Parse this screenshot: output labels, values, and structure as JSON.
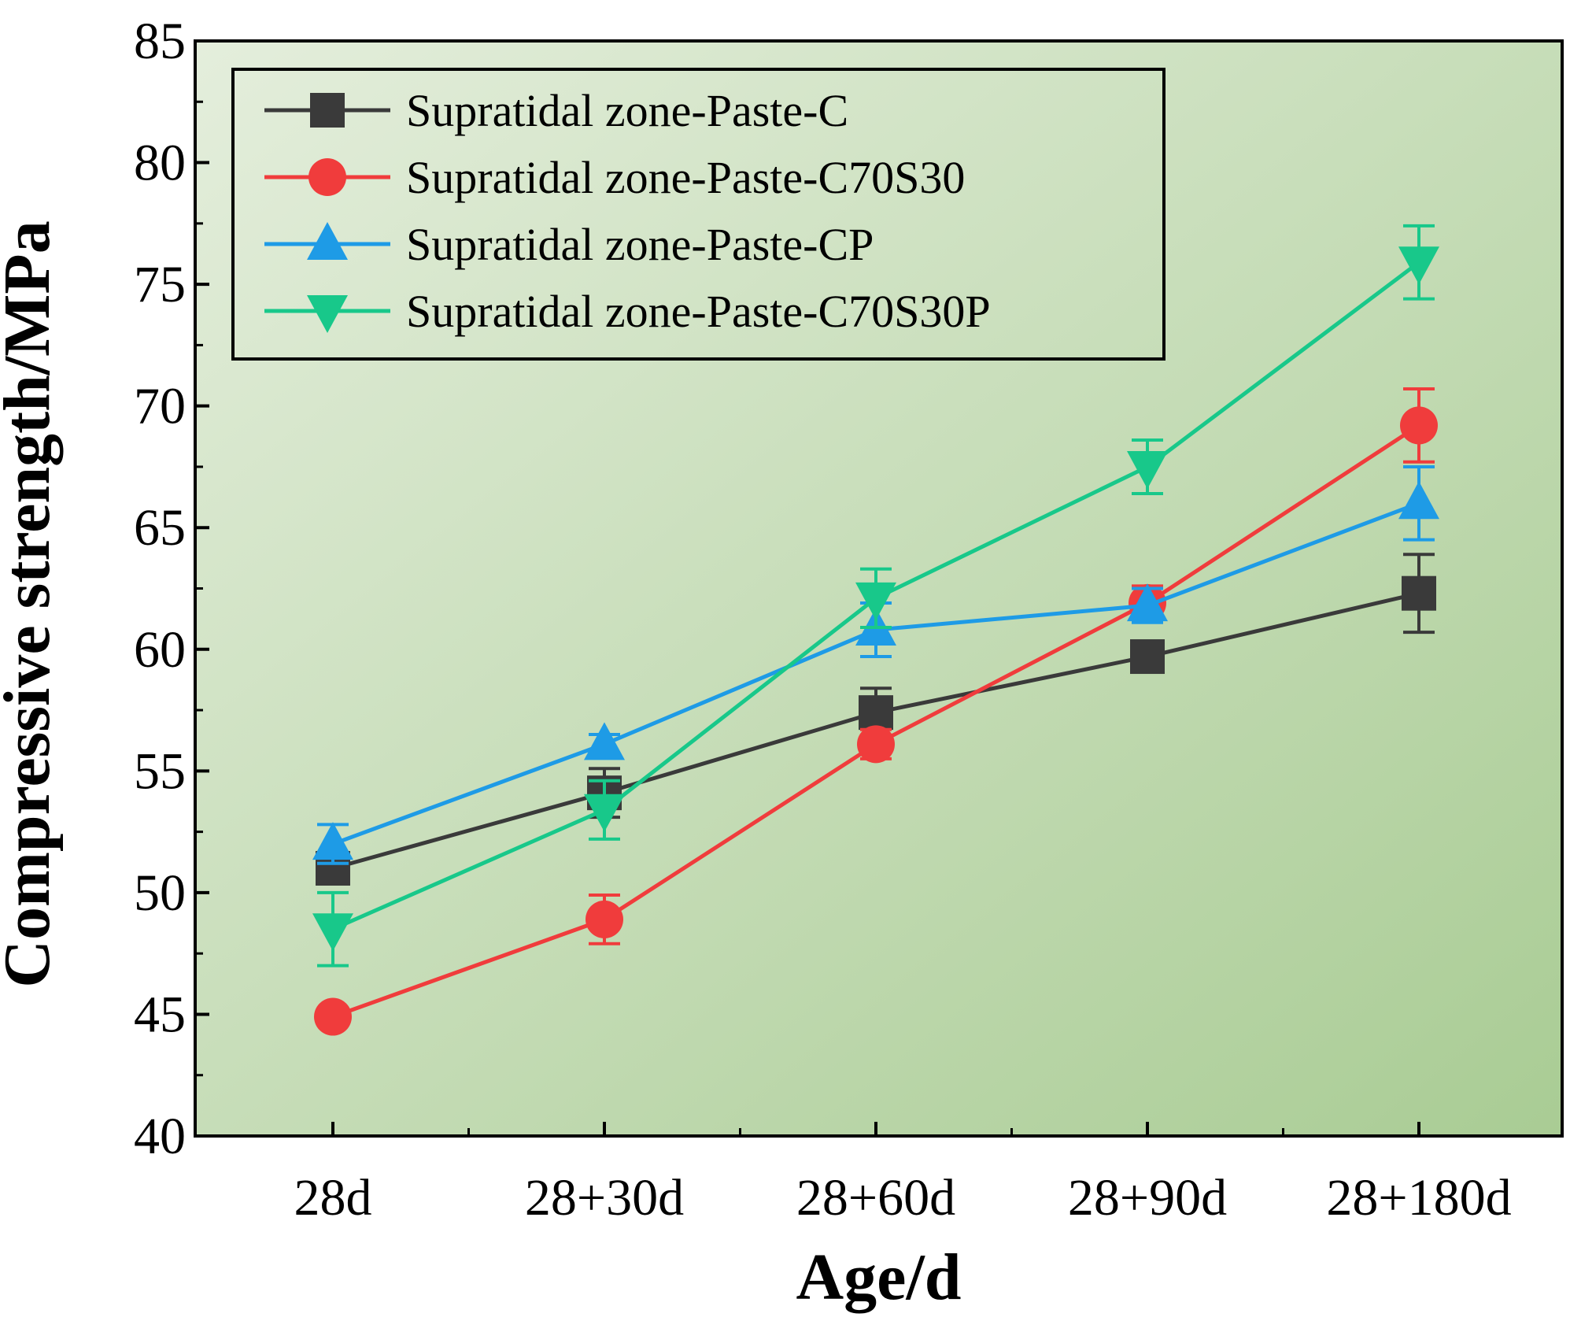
{
  "chart_data": {
    "type": "line",
    "title": "",
    "xlabel": "Age/d",
    "ylabel": "Compressive strength/MPa",
    "categories": [
      "28d",
      "28+30d",
      "28+60d",
      "28+90d",
      "28+180d"
    ],
    "ylim": [
      40,
      85
    ],
    "yticks": [
      40,
      45,
      50,
      55,
      60,
      65,
      70,
      75,
      80,
      85
    ],
    "grid": false,
    "legend_position": "top-left",
    "series": [
      {
        "name": "Supratidal zone-Paste-C",
        "color": "#3a3a3a",
        "marker": "square",
        "values": [
          51.0,
          54.1,
          57.4,
          59.7,
          62.3
        ],
        "errors": [
          0.4,
          1.0,
          1.0,
          0.6,
          1.6
        ]
      },
      {
        "name": "Supratidal zone-Paste-C70S30",
        "color": "#f03c3c",
        "marker": "circle",
        "values": [
          44.9,
          48.9,
          56.1,
          61.9,
          69.2
        ],
        "errors": [
          0.3,
          1.0,
          0.6,
          0.7,
          1.5
        ]
      },
      {
        "name": "Supratidal zone-Paste-CP",
        "color": "#1e9be6",
        "marker": "triangle-up",
        "values": [
          52.0,
          56.1,
          60.8,
          61.8,
          66.0
        ],
        "errors": [
          0.8,
          0.4,
          1.1,
          0.7,
          1.5
        ]
      },
      {
        "name": "Supratidal zone-Paste-C70S30P",
        "color": "#18c88a",
        "marker": "triangle-down",
        "values": [
          48.5,
          53.4,
          62.1,
          67.5,
          75.9
        ],
        "errors": [
          1.5,
          1.2,
          1.2,
          1.1,
          1.5
        ]
      }
    ],
    "colors": {
      "background_light": "#e4eedc",
      "background_dark": "#a9cc94",
      "axis": "#000000"
    }
  }
}
